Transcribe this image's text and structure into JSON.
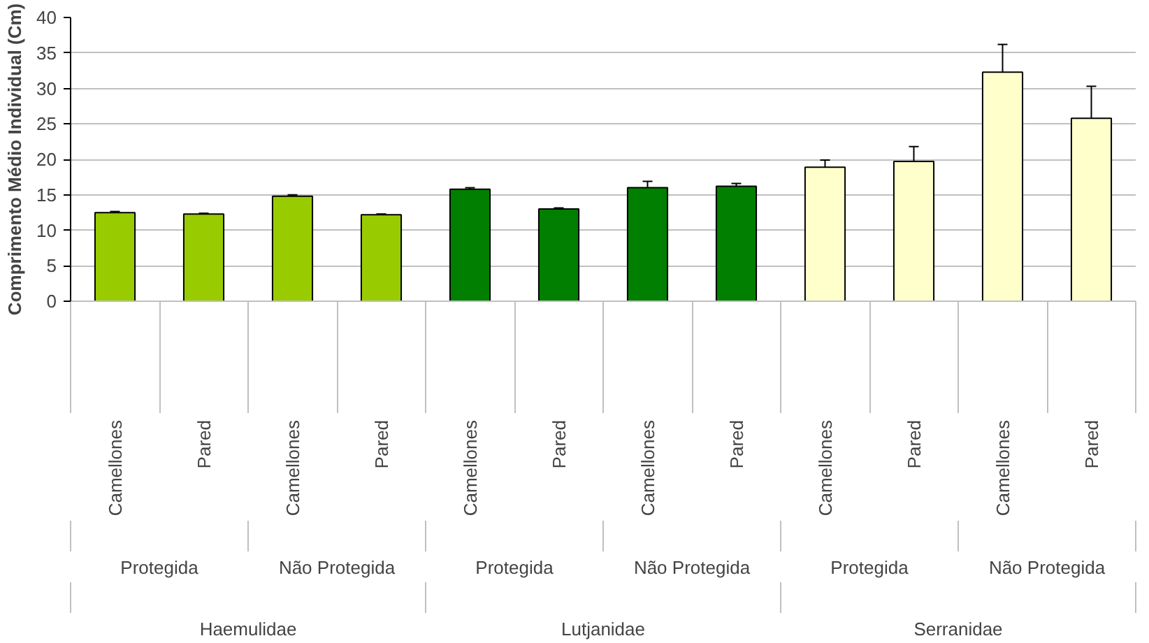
{
  "chart_data": {
    "type": "bar",
    "ylabel": "Comprimento Médio Individual (Cm)",
    "categories": [
      "Camellones",
      "Pared",
      "Camellones",
      "Pared",
      "Camellones",
      "Pared",
      "Camellones",
      "Pared",
      "Camellones",
      "Pared",
      "Camellones",
      "Pared"
    ],
    "values": [
      12.5,
      12.3,
      14.8,
      12.2,
      15.8,
      13.0,
      16.0,
      16.2,
      18.9,
      19.7,
      32.3,
      25.8
    ],
    "errors": [
      0.15,
      0.1,
      0.2,
      0.1,
      0.2,
      0.15,
      0.9,
      0.4,
      1.0,
      2.1,
      3.9,
      4.5
    ],
    "colors": [
      "#99cc00",
      "#99cc00",
      "#99cc00",
      "#99cc00",
      "#007f00",
      "#007f00",
      "#007f00",
      "#007f00",
      "#ffffcc",
      "#ffffcc",
      "#ffffcc",
      "#ffffcc"
    ],
    "annotations": [
      "Protegida",
      "Não Protegida",
      "Protegida",
      "Não Protegida",
      "Protegida",
      "Não Protegida",
      "Haemulidae",
      "Lutjanidae",
      "Serranidae"
    ],
    "ylim": [
      0,
      40
    ],
    "yticks": [
      0,
      5,
      10,
      15,
      20,
      25,
      30,
      35,
      40
    ],
    "grid": "y"
  }
}
